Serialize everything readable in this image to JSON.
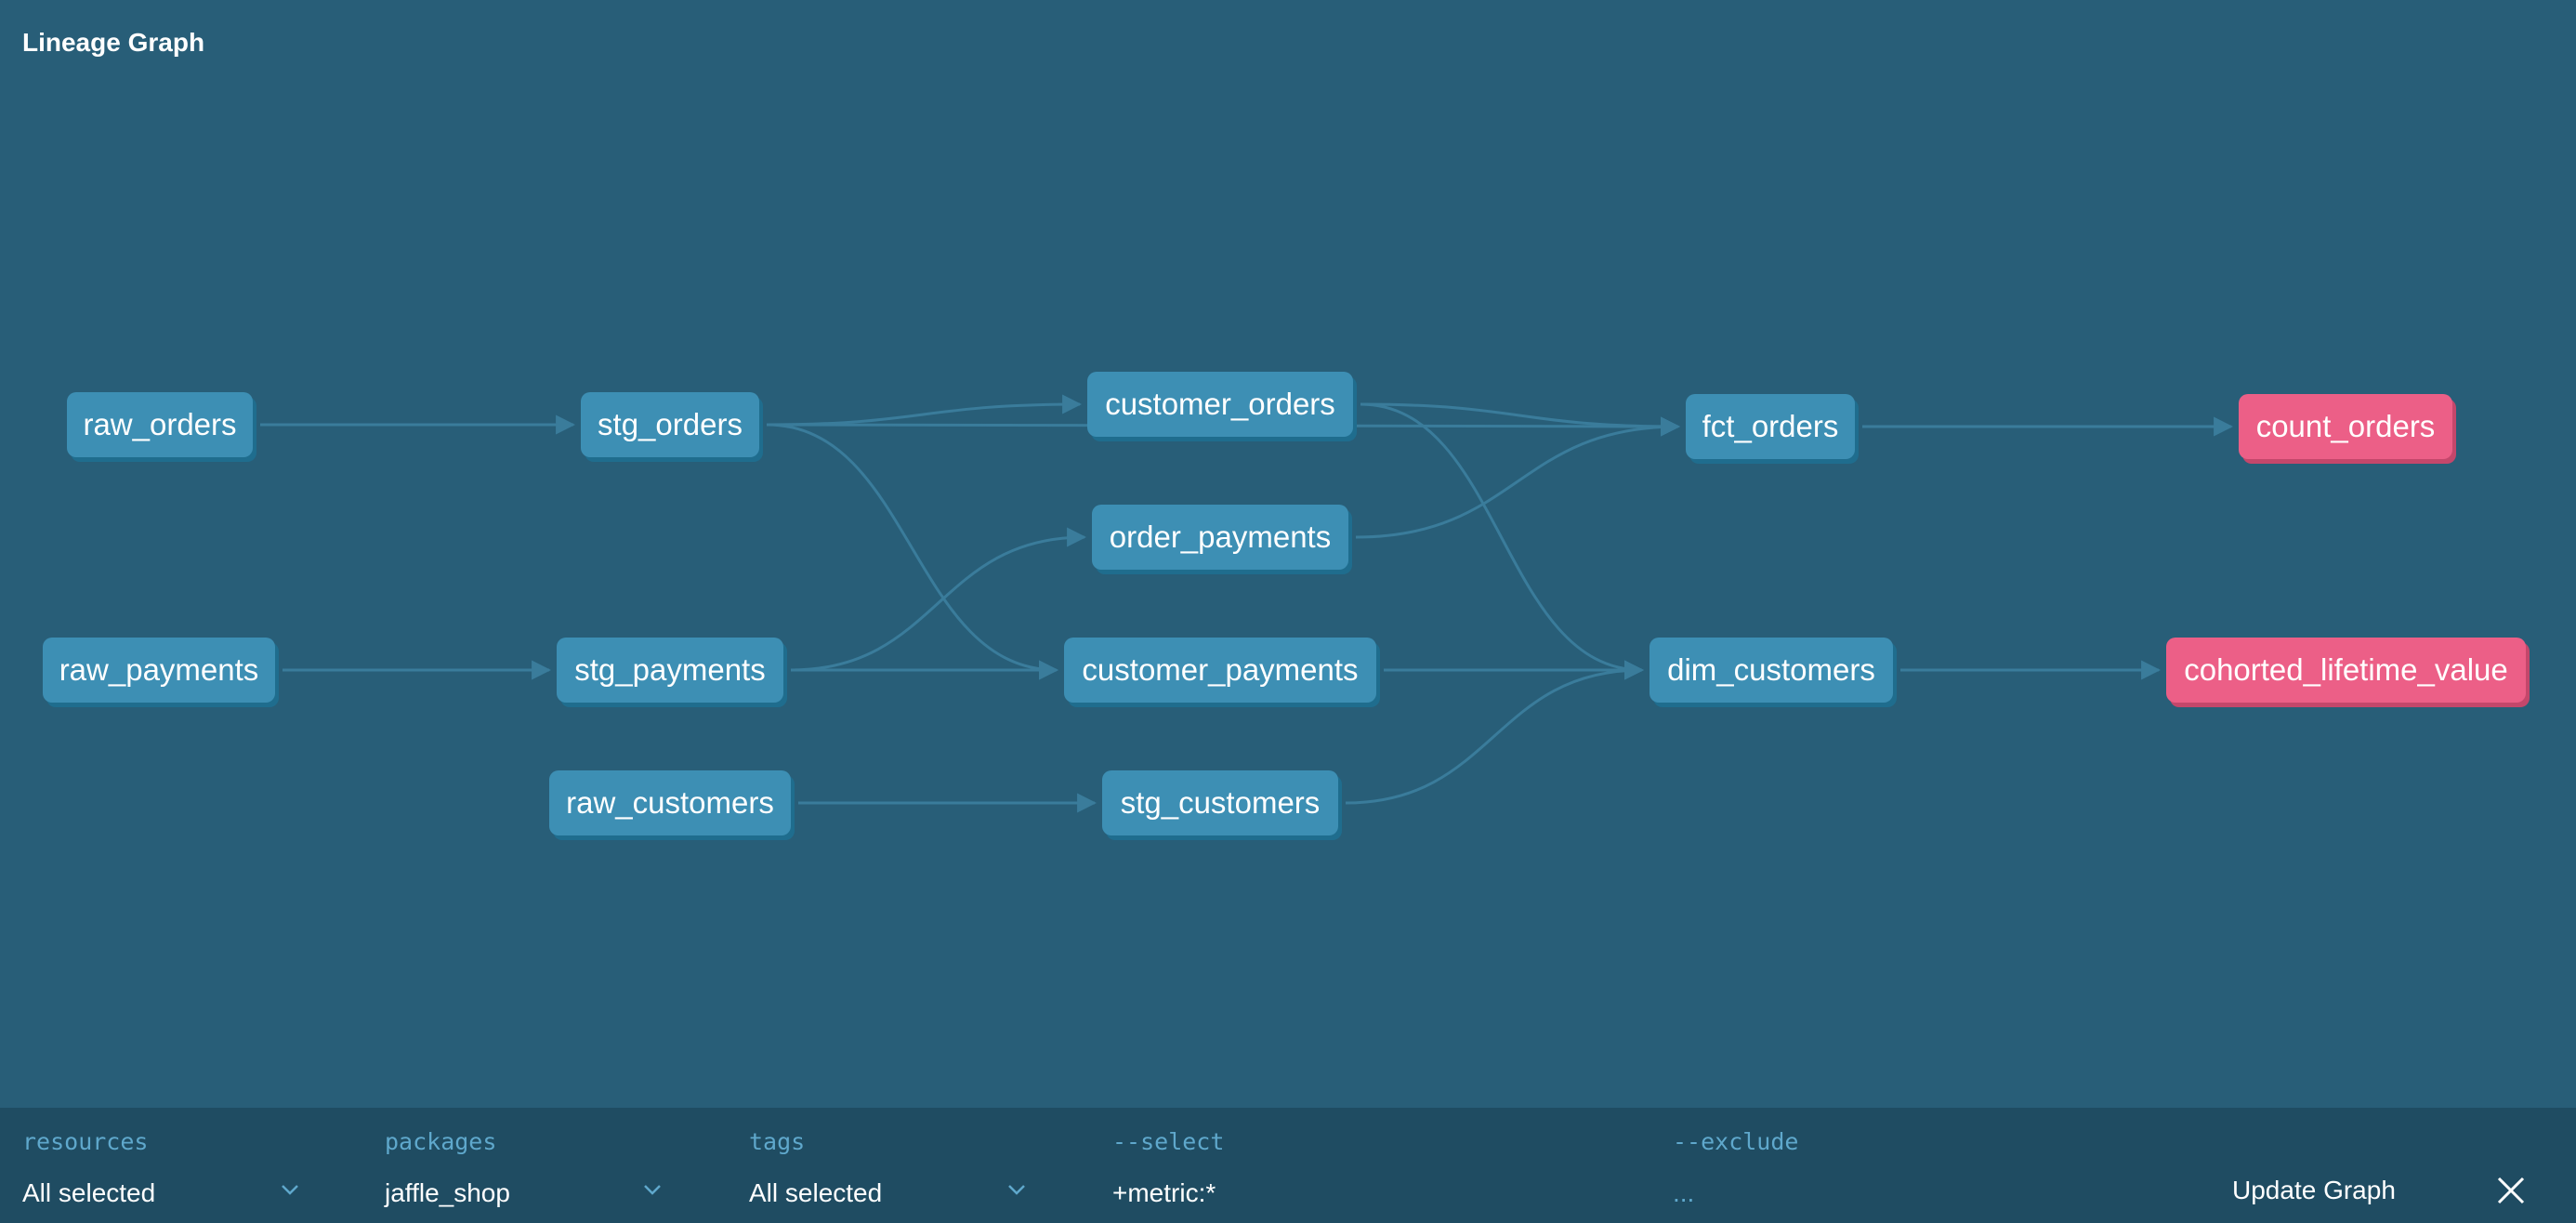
{
  "title": "Lineage Graph",
  "colors": {
    "background": "#285e78",
    "model": "#3d8fb4",
    "metric": "#ec5f87",
    "edge": "#3a7c9b",
    "toolbar": "#1f4c62",
    "label": "#5fa8cc"
  },
  "nodes": [
    {
      "id": "raw_orders",
      "label": "raw_orders",
      "kind": "model"
    },
    {
      "id": "stg_orders",
      "label": "stg_orders",
      "kind": "model"
    },
    {
      "id": "customer_orders",
      "label": "customer_orders",
      "kind": "model"
    },
    {
      "id": "fct_orders",
      "label": "fct_orders",
      "kind": "model"
    },
    {
      "id": "count_orders",
      "label": "count_orders",
      "kind": "metric"
    },
    {
      "id": "order_payments",
      "label": "order_payments",
      "kind": "model"
    },
    {
      "id": "raw_payments",
      "label": "raw_payments",
      "kind": "model"
    },
    {
      "id": "stg_payments",
      "label": "stg_payments",
      "kind": "model"
    },
    {
      "id": "customer_payments",
      "label": "customer_payments",
      "kind": "model"
    },
    {
      "id": "dim_customers",
      "label": "dim_customers",
      "kind": "model"
    },
    {
      "id": "cohorted_lifetime_value",
      "label": "cohorted_lifetime_value",
      "kind": "metric"
    },
    {
      "id": "raw_customers",
      "label": "raw_customers",
      "kind": "model"
    },
    {
      "id": "stg_customers",
      "label": "stg_customers",
      "kind": "model"
    }
  ],
  "edges": [
    [
      "raw_orders",
      "stg_orders"
    ],
    [
      "stg_orders",
      "customer_orders"
    ],
    [
      "stg_orders",
      "fct_orders"
    ],
    [
      "stg_orders",
      "customer_payments"
    ],
    [
      "customer_orders",
      "fct_orders"
    ],
    [
      "customer_orders",
      "dim_customers"
    ],
    [
      "order_payments",
      "fct_orders"
    ],
    [
      "raw_payments",
      "stg_payments"
    ],
    [
      "stg_payments",
      "order_payments"
    ],
    [
      "stg_payments",
      "customer_payments"
    ],
    [
      "customer_payments",
      "dim_customers"
    ],
    [
      "raw_customers",
      "stg_customers"
    ],
    [
      "stg_customers",
      "dim_customers"
    ],
    [
      "fct_orders",
      "count_orders"
    ],
    [
      "dim_customers",
      "cohorted_lifetime_value"
    ]
  ],
  "filters": {
    "resources": {
      "label": "resources",
      "value": "All selected"
    },
    "packages": {
      "label": "packages",
      "value": "jaffle_shop"
    },
    "tags": {
      "label": "tags",
      "value": "All selected"
    },
    "select": {
      "label": "--select",
      "value": "+metric:*"
    },
    "exclude": {
      "label": "--exclude",
      "value": "..."
    }
  },
  "actions": {
    "update_label": "Update Graph"
  }
}
